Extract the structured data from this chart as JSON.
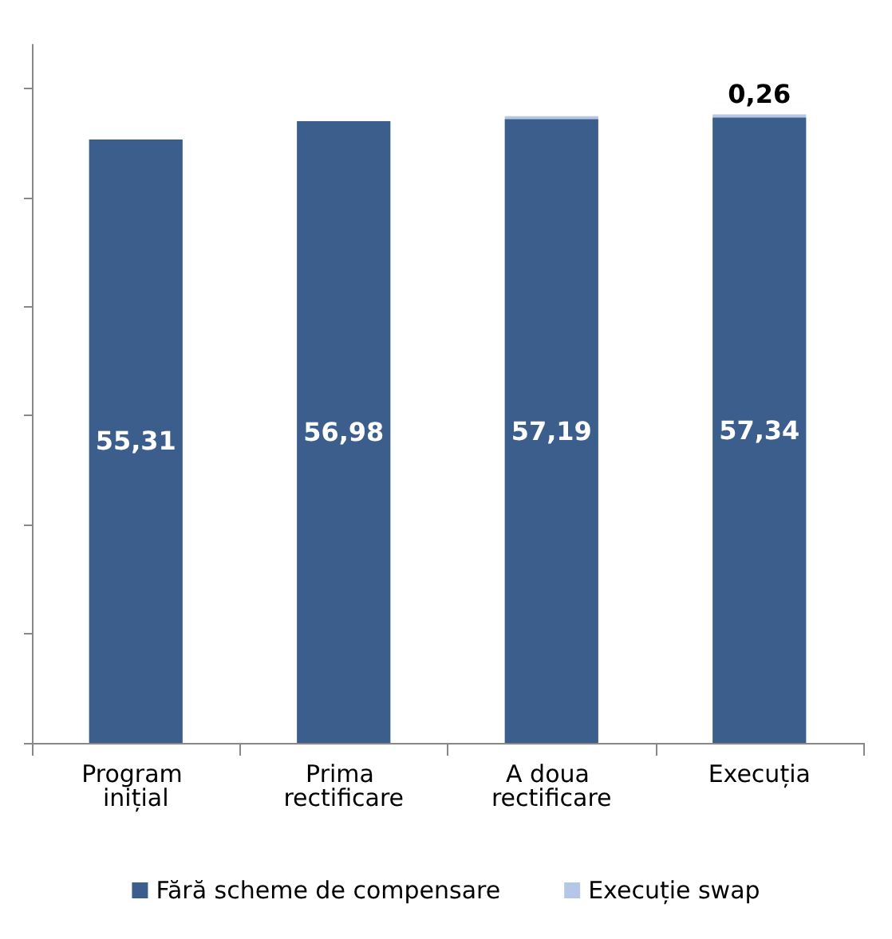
{
  "chart_data": {
    "type": "bar",
    "stacked": true,
    "categories": [
      "Program inițial",
      "Prima rectificare",
      "A doua rectificare",
      "Execuția"
    ],
    "series": [
      {
        "name": "Fără scheme de compensare",
        "color": "#3b5e8c",
        "values": [
          55.31,
          56.98,
          57.19,
          57.34
        ],
        "value_labels": [
          "55,31",
          "56,98",
          "57,19",
          "57,34"
        ]
      },
      {
        "name": "Execuție swap",
        "color": "#b4c7e7",
        "values": [
          null,
          null,
          0.26,
          0.26
        ],
        "value_labels": [
          null,
          null,
          null,
          "0,26"
        ]
      }
    ],
    "ylim": [
      0,
      64
    ],
    "yticks": [
      {
        "value": 0,
        "label": null
      },
      {
        "value": 10,
        "label": null
      },
      {
        "value": 20,
        "label": null
      },
      {
        "value": 30,
        "label": null
      },
      {
        "value": 40,
        "label": null
      },
      {
        "value": 50,
        "label": null
      },
      {
        "value": 60,
        "label": null
      }
    ],
    "tick_labels": "x",
    "legend": "bottom"
  }
}
